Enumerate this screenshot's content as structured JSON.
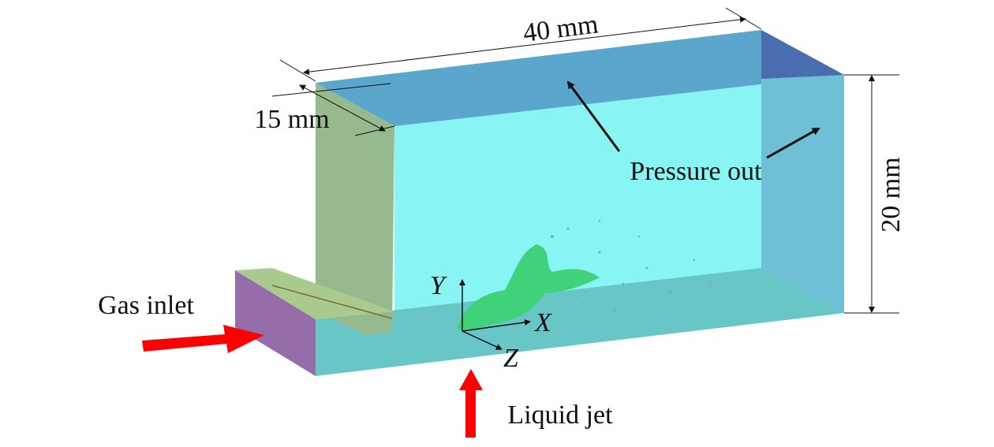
{
  "dimensions": {
    "length": "40 mm",
    "depth": "15 mm",
    "height": "20 mm"
  },
  "labels": {
    "outlet": "Pressure out",
    "gas": "Gas inlet",
    "liquid": "Liquid jet"
  },
  "axes": {
    "y": "Y",
    "x": "X",
    "z": "Z"
  }
}
